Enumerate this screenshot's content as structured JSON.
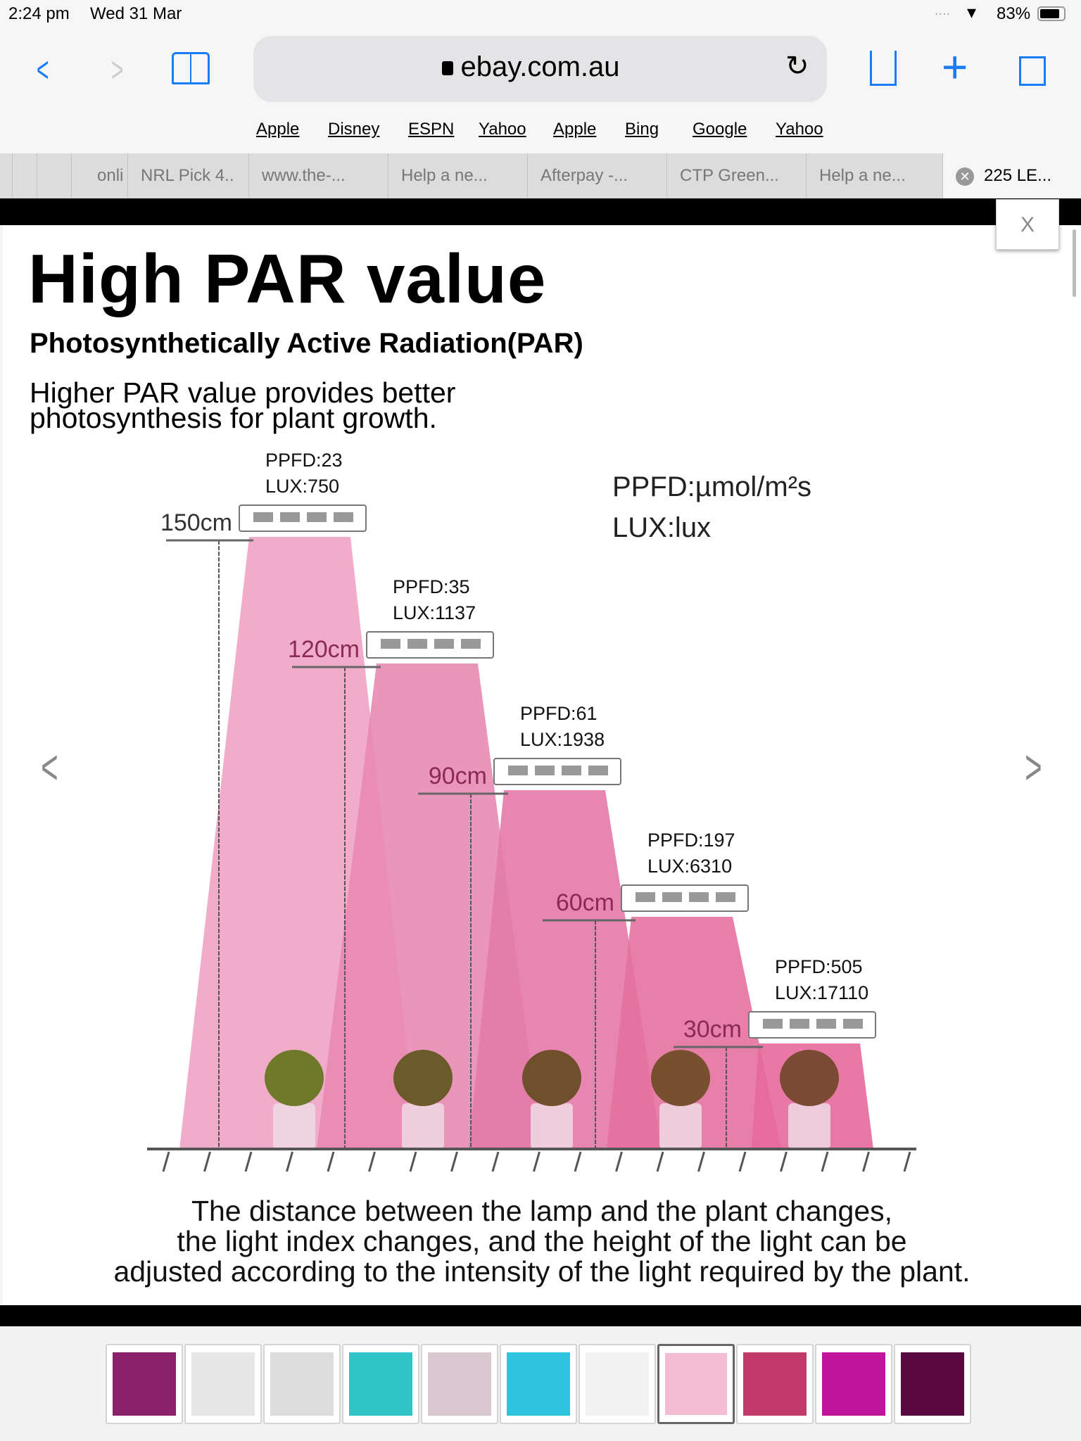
{
  "status": {
    "time": "2:24 pm",
    "date": "Wed 31 Mar",
    "battery": "83%",
    "battery_level": 0.83
  },
  "toolbar": {
    "url": "ebay.com.au"
  },
  "favorites": [
    "Apple",
    "Disney",
    "ESPN",
    "Yahoo",
    "Apple",
    "Bing",
    "Google",
    "Yahoo"
  ],
  "tabs": [
    "onli",
    "NRL Pick 4..",
    "www.the-...",
    "Help a ne...",
    "Afterpay -...",
    "CTP Green...",
    "Help a ne...",
    "225 LE..."
  ],
  "viewer": {
    "close_label": "X"
  },
  "content": {
    "title": "High PAR value",
    "subtitle": "Photosynthetically Active Radiation(PAR)",
    "intro_1": "Higher PAR value provides better",
    "intro_2": "photosynthesis for plant growth.",
    "unit_ppfd": "PPFD:µmol/m²s",
    "unit_lux": "LUX:lux",
    "lamps": [
      {
        "height": "150cm",
        "ppfd": "PPFD:23",
        "lux": "LUX:750"
      },
      {
        "height": "120cm",
        "ppfd": "PPFD:35",
        "lux": "LUX:1137"
      },
      {
        "height": "90cm",
        "ppfd": "PPFD:61",
        "lux": "LUX:1938"
      },
      {
        "height": "60cm",
        "ppfd": "PPFD:197",
        "lux": "LUX:6310"
      },
      {
        "height": "30cm",
        "ppfd": "PPFD:505",
        "lux": "LUX:17110"
      }
    ],
    "caption_1": "The distance between the lamp and the plant changes,",
    "caption_2": "the light index changes, and the height of the light can be",
    "caption_3": "adjusted according to the intensity of the light required by the plant."
  },
  "thumbnails": {
    "count": 11,
    "selected_index": 7,
    "colors": [
      "#8a1f6a",
      "#e6e6e6",
      "#dcdcdc",
      "#2ec4c8",
      "#d9c8cf",
      "#2ec4e0",
      "#f2f2f2",
      "#f3bcd3",
      "#c23a6a",
      "#c0149a",
      "#5a0840"
    ]
  },
  "colors": {
    "accent": "#1a7cf5",
    "beam": "#e76aa0"
  }
}
